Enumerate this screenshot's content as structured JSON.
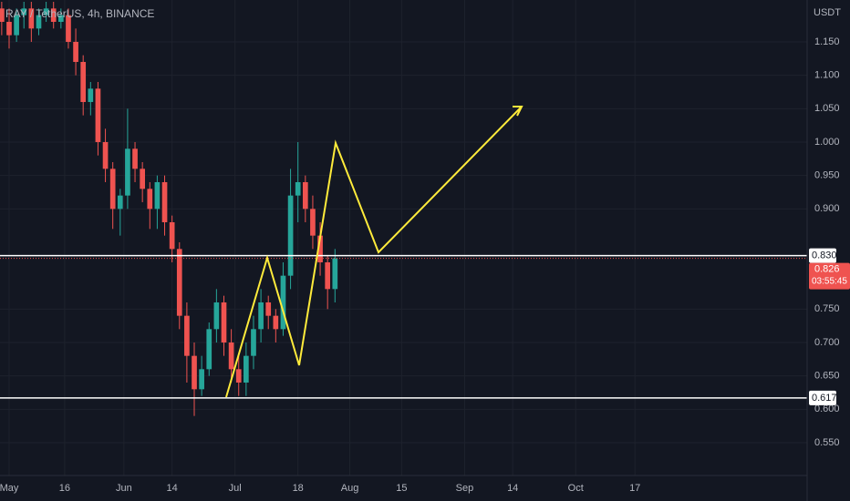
{
  "chart_data": {
    "type": "candlestick",
    "title": "RAY / TetherUS, 4h, BINANCE",
    "y_axis_label": "USDT",
    "x": [
      -2,
      0,
      2,
      4,
      6,
      8,
      10,
      12,
      14,
      16,
      18,
      20,
      22,
      24,
      26,
      28,
      30,
      32,
      34,
      36,
      38,
      40,
      42,
      44,
      46,
      48,
      50,
      52,
      54,
      56,
      58,
      60,
      62,
      64,
      66,
      68,
      70,
      72,
      74,
      76,
      78,
      80,
      82,
      84,
      86,
      88
    ],
    "open": [
      1.2,
      1.18,
      1.16,
      1.19,
      1.2,
      1.17,
      1.19,
      1.2,
      1.18,
      1.19,
      1.15,
      1.12,
      1.06,
      1.08,
      1.0,
      0.96,
      0.9,
      0.92,
      0.99,
      0.96,
      0.93,
      0.9,
      0.94,
      0.88,
      0.84,
      0.74,
      0.68,
      0.63,
      0.66,
      0.72,
      0.76,
      0.7,
      0.66,
      0.64,
      0.68,
      0.72,
      0.76,
      0.74,
      0.72,
      0.8,
      0.92,
      0.94,
      0.9,
      0.86,
      0.82,
      0.78
    ],
    "high": [
      1.21,
      1.2,
      1.2,
      1.21,
      1.21,
      1.2,
      1.21,
      1.21,
      1.2,
      1.2,
      1.17,
      1.13,
      1.09,
      1.09,
      1.02,
      0.97,
      0.93,
      1.05,
      1.0,
      0.97,
      0.94,
      0.95,
      0.95,
      0.89,
      0.85,
      0.76,
      0.7,
      0.68,
      0.73,
      0.78,
      0.77,
      0.72,
      0.68,
      0.7,
      0.74,
      0.78,
      0.77,
      0.75,
      0.82,
      0.96,
      1.0,
      0.95,
      0.92,
      0.88,
      0.83,
      0.84
    ],
    "low": [
      1.16,
      1.14,
      1.15,
      1.17,
      1.15,
      1.16,
      1.18,
      1.17,
      1.17,
      1.14,
      1.1,
      1.04,
      1.04,
      0.98,
      0.94,
      0.87,
      0.86,
      0.9,
      0.94,
      0.91,
      0.87,
      0.87,
      0.86,
      0.82,
      0.72,
      0.64,
      0.59,
      0.62,
      0.65,
      0.7,
      0.68,
      0.64,
      0.62,
      0.62,
      0.66,
      0.7,
      0.72,
      0.7,
      0.71,
      0.78,
      0.88,
      0.88,
      0.84,
      0.8,
      0.75,
      0.76
    ],
    "close": [
      1.18,
      1.16,
      1.19,
      1.2,
      1.17,
      1.19,
      1.2,
      1.18,
      1.19,
      1.15,
      1.12,
      1.06,
      1.08,
      1.0,
      0.96,
      0.9,
      0.92,
      0.99,
      0.96,
      0.93,
      0.9,
      0.94,
      0.88,
      0.84,
      0.74,
      0.68,
      0.63,
      0.66,
      0.72,
      0.76,
      0.7,
      0.66,
      0.64,
      0.68,
      0.72,
      0.76,
      0.74,
      0.72,
      0.8,
      0.92,
      0.94,
      0.9,
      0.86,
      0.82,
      0.78,
      0.826
    ],
    "up_color": "#26a69a",
    "down_color": "#ef5350",
    "xlim": [
      -2.46,
      215.5
    ],
    "xticks": [
      {
        "value": 0,
        "label": "May"
      },
      {
        "value": 15,
        "label": "16"
      },
      {
        "value": 31,
        "label": "Jun"
      },
      {
        "value": 44,
        "label": "14"
      },
      {
        "value": 61,
        "label": "Jul"
      },
      {
        "value": 78,
        "label": "18"
      },
      {
        "value": 92,
        "label": "Aug"
      },
      {
        "value": 106,
        "label": "15"
      },
      {
        "value": 123,
        "label": "Sep"
      },
      {
        "value": 136,
        "label": "14"
      },
      {
        "value": 153,
        "label": "Oct"
      },
      {
        "value": 169,
        "label": "17"
      }
    ],
    "ylim": [
      0.5009,
      1.2127
    ],
    "yticks": [
      {
        "value": 0.55,
        "label": "0.550"
      },
      {
        "value": 0.6,
        "label": "0.600"
      },
      {
        "value": 0.65,
        "label": "0.650"
      },
      {
        "value": 0.7,
        "label": "0.700"
      },
      {
        "value": 0.75,
        "label": "0.750"
      },
      {
        "value": 0.9,
        "label": "0.900"
      },
      {
        "value": 0.95,
        "label": "0.950"
      },
      {
        "value": 1.0,
        "label": "1.000"
      },
      {
        "value": 1.05,
        "label": "1.050"
      },
      {
        "value": 1.1,
        "label": "1.100"
      },
      {
        "value": 1.15,
        "label": "1.150"
      }
    ],
    "grid": true,
    "levels": [
      {
        "value": 0.83,
        "label": "0.830"
      },
      {
        "value": 0.617,
        "label": "0.617"
      }
    ],
    "last": {
      "value": 0.826,
      "countdown": "03:55:45",
      "color": "#ef5350"
    }
  }
}
